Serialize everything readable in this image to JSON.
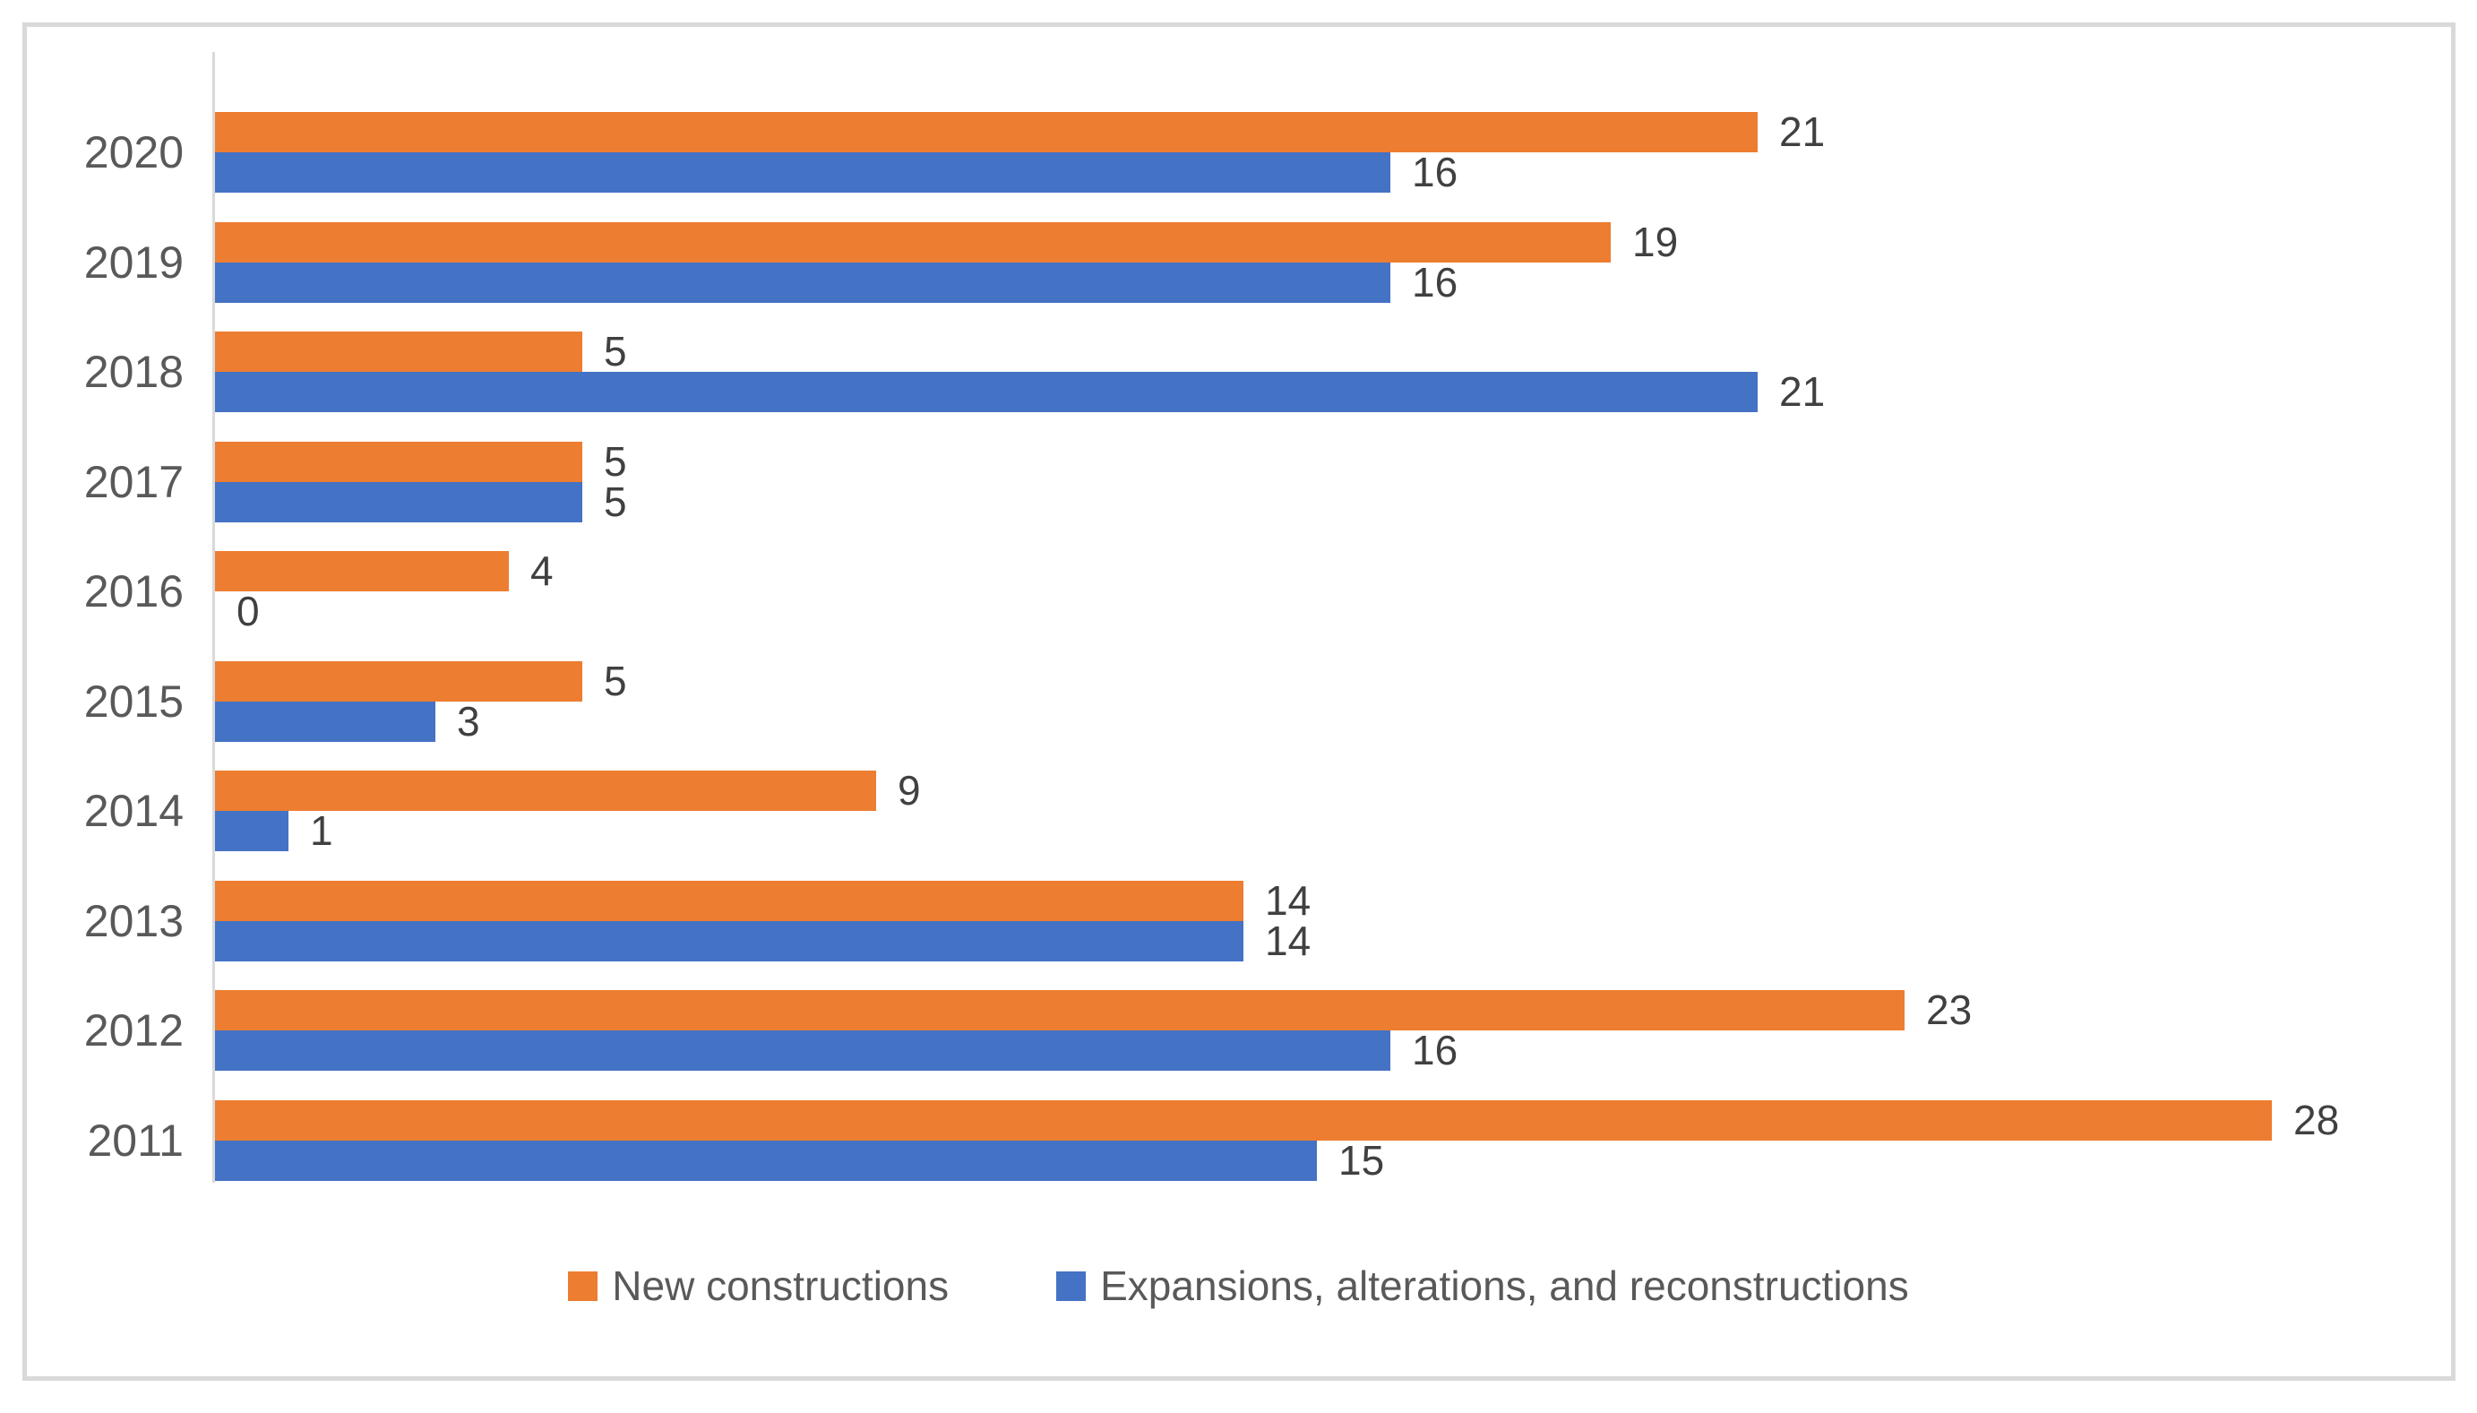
{
  "chart_data": {
    "type": "bar",
    "orientation": "horizontal",
    "title": "",
    "xlabel": "",
    "ylabel": "",
    "categories": [
      "2020",
      "2019",
      "2018",
      "2017",
      "2016",
      "2015",
      "2014",
      "2013",
      "2012",
      "2011"
    ],
    "series": [
      {
        "name": "New constructions",
        "color": "#ED7D31",
        "values": [
          21,
          19,
          5,
          5,
          4,
          5,
          9,
          14,
          23,
          28
        ]
      },
      {
        "name": "Expansions, alterations, and reconstructions",
        "color": "#4472C4",
        "values": [
          16,
          16,
          21,
          5,
          0,
          3,
          1,
          14,
          16,
          15
        ]
      }
    ],
    "xlim": [
      0,
      30
    ],
    "grid": false,
    "data_labels": true,
    "legend_position": "bottom",
    "axis_line_color": "#d9d9d9",
    "label_text_color": "#404040",
    "tick_text_color": "#595959"
  }
}
